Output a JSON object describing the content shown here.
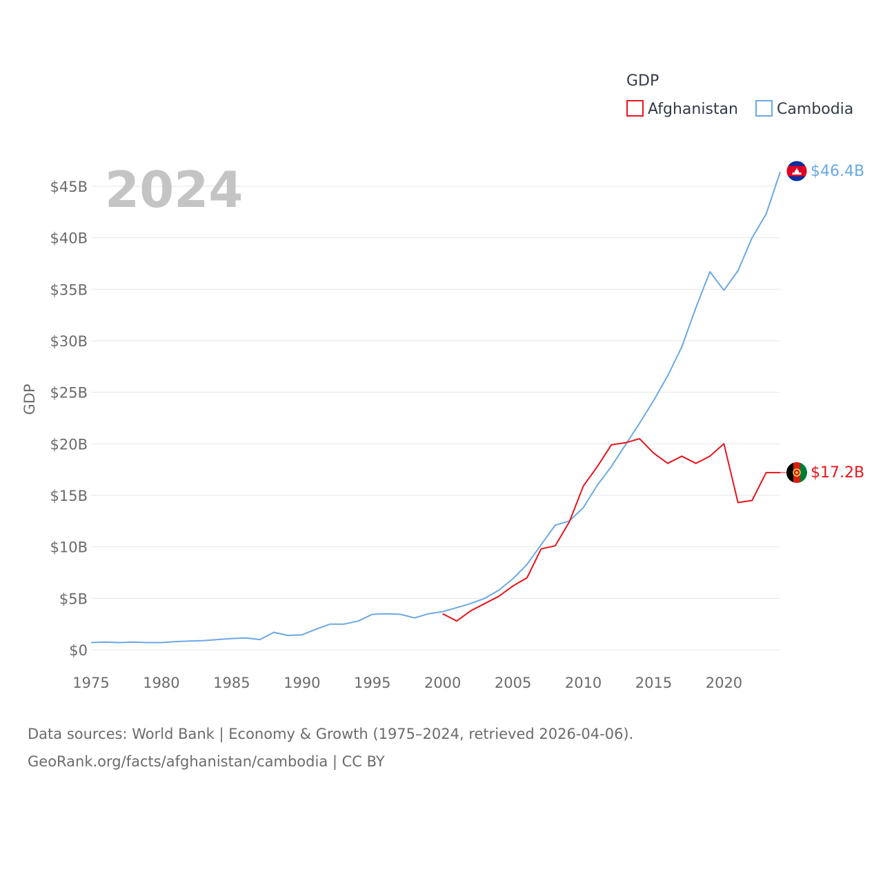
{
  "chart_data": {
    "type": "line",
    "year_label": "2024",
    "ylabel": "GDP",
    "x_ticks": [
      "1975",
      "1980",
      "1985",
      "1990",
      "1995",
      "2000",
      "2005",
      "2010",
      "2015",
      "2020"
    ],
    "y_ticks": [
      "$0",
      "$5B",
      "$10B",
      "$15B",
      "$20B",
      "$25B",
      "$30B",
      "$35B",
      "$40B",
      "$45B"
    ],
    "xlim": [
      1975,
      2024
    ],
    "ylim": [
      0,
      45
    ],
    "legend": {
      "title": "GDP",
      "items": [
        {
          "name": "Afghanistan",
          "color": "#e8141c"
        },
        {
          "name": "Cambodia",
          "color": "#6aa8e3"
        }
      ]
    },
    "series": [
      {
        "name": "Afghanistan",
        "color": "#e8141c",
        "end_label": "$17.2B",
        "flag": "afghanistan-flag",
        "points": [
          [
            2000,
            3.5
          ],
          [
            2001,
            2.8
          ],
          [
            2002,
            3.8
          ],
          [
            2003,
            4.5
          ],
          [
            2004,
            5.2
          ],
          [
            2005,
            6.2
          ],
          [
            2006,
            7.0
          ],
          [
            2007,
            9.8
          ],
          [
            2008,
            10.1
          ],
          [
            2009,
            12.4
          ],
          [
            2010,
            15.9
          ],
          [
            2011,
            17.8
          ],
          [
            2012,
            19.9
          ],
          [
            2013,
            20.1
          ],
          [
            2014,
            20.5
          ],
          [
            2015,
            19.1
          ],
          [
            2016,
            18.1
          ],
          [
            2017,
            18.8
          ],
          [
            2018,
            18.1
          ],
          [
            2019,
            18.8
          ],
          [
            2020,
            20.0
          ],
          [
            2021,
            14.3
          ],
          [
            2022,
            14.5
          ],
          [
            2023,
            17.2
          ],
          [
            2024,
            17.2
          ]
        ]
      },
      {
        "name": "Cambodia",
        "color": "#6aa8e3",
        "end_label": "$46.4B",
        "flag": "cambodia-flag",
        "points": [
          [
            1975,
            0.7
          ],
          [
            1976,
            0.75
          ],
          [
            1977,
            0.7
          ],
          [
            1978,
            0.75
          ],
          [
            1979,
            0.7
          ],
          [
            1980,
            0.7
          ],
          [
            1981,
            0.8
          ],
          [
            1982,
            0.85
          ],
          [
            1983,
            0.9
          ],
          [
            1984,
            1.0
          ],
          [
            1985,
            1.1
          ],
          [
            1986,
            1.15
          ],
          [
            1987,
            1.0
          ],
          [
            1988,
            1.7
          ],
          [
            1989,
            1.4
          ],
          [
            1990,
            1.45
          ],
          [
            1991,
            2.0
          ],
          [
            1992,
            2.5
          ],
          [
            1993,
            2.5
          ],
          [
            1994,
            2.8
          ],
          [
            1995,
            3.45
          ],
          [
            1996,
            3.5
          ],
          [
            1997,
            3.45
          ],
          [
            1998,
            3.1
          ],
          [
            1999,
            3.5
          ],
          [
            2000,
            3.7
          ],
          [
            2001,
            4.1
          ],
          [
            2002,
            4.5
          ],
          [
            2003,
            5.0
          ],
          [
            2004,
            5.8
          ],
          [
            2005,
            6.9
          ],
          [
            2006,
            8.3
          ],
          [
            2007,
            10.2
          ],
          [
            2008,
            12.1
          ],
          [
            2009,
            12.5
          ],
          [
            2010,
            13.8
          ],
          [
            2011,
            16.0
          ],
          [
            2012,
            17.8
          ],
          [
            2013,
            19.9
          ],
          [
            2014,
            22.0
          ],
          [
            2015,
            24.2
          ],
          [
            2016,
            26.6
          ],
          [
            2017,
            29.4
          ],
          [
            2018,
            33.2
          ],
          [
            2019,
            36.7
          ],
          [
            2020,
            34.9
          ],
          [
            2021,
            36.8
          ],
          [
            2022,
            40.0
          ],
          [
            2023,
            42.3
          ],
          [
            2024,
            46.4
          ]
        ]
      }
    ]
  },
  "footer": {
    "line1": "Data sources: World Bank | Economy & Growth (1975–2024, retrieved 2026-04-06).",
    "line2": "GeoRank.org/facts/afghanistan/cambodia | CC BY"
  }
}
